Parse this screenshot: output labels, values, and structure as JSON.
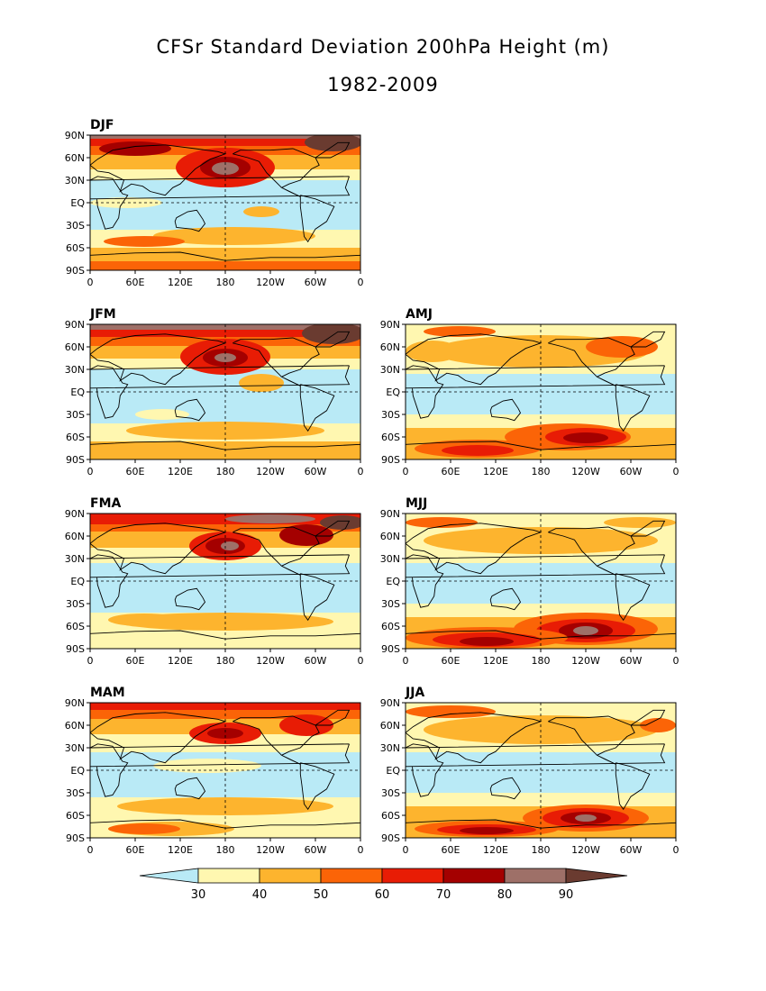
{
  "title": "CFSr Standard Deviation 200hPa Height (m)",
  "subtitle": "1982-2009",
  "lat_ticks": [
    "90N",
    "60N",
    "30N",
    "EQ",
    "30S",
    "60S",
    "90S"
  ],
  "lon_ticks": [
    "0",
    "60E",
    "120E",
    "180",
    "120W",
    "60W",
    "0"
  ],
  "colorbar": {
    "levels": [
      "30",
      "40",
      "50",
      "60",
      "70",
      "80",
      "90"
    ],
    "colors": [
      "#b9eaf6",
      "#fff7b0",
      "#fdb42e",
      "#fb6407",
      "#e81c05",
      "#a40000",
      "#9e7068",
      "#6a3b30"
    ]
  },
  "panels": [
    {
      "label": "DJF",
      "key": "DJF"
    },
    {
      "label": "JFM",
      "key": "JFM"
    },
    {
      "label": "AMJ",
      "key": "AMJ"
    },
    {
      "label": "FMA",
      "key": "FMA"
    },
    {
      "label": "MJJ",
      "key": "MJJ"
    },
    {
      "label": "MAM",
      "key": "MAM"
    },
    {
      "label": "JJA",
      "key": "JJA"
    }
  ]
}
